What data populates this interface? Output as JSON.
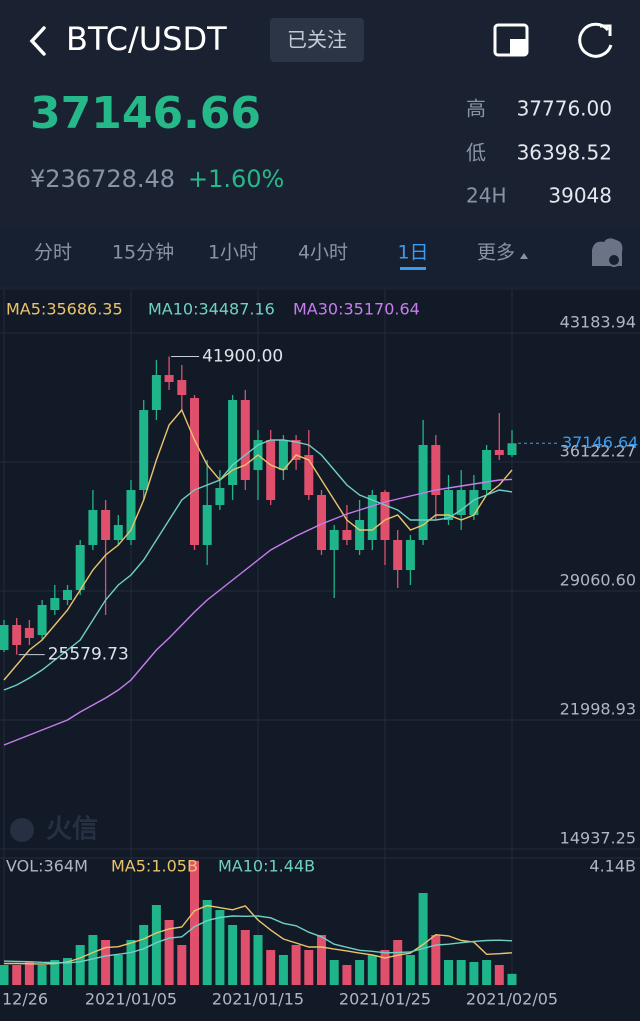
{
  "header": {
    "pair": "BTC/USDT",
    "follow": "已关注"
  },
  "price": {
    "last": "37146.66",
    "cny": "¥236728.48",
    "change": "+1.60%"
  },
  "stats": [
    {
      "label": "高",
      "value": "37776.00"
    },
    {
      "label": "低",
      "value": "36398.52"
    },
    {
      "label": "24H",
      "value": "39048"
    }
  ],
  "tabs": [
    "分时",
    "15分钟",
    "1小时",
    "4小时",
    "1日",
    "更多"
  ],
  "watermark": "火信",
  "chart_data": [
    {
      "type": "candlestick",
      "grid": true,
      "up_color": "#1fb58a",
      "down_color": "#e0506d",
      "categories": [
        "12/26",
        null,
        null,
        null,
        null,
        null,
        null,
        null,
        null,
        null,
        "2021/01/05",
        null,
        null,
        null,
        null,
        null,
        null,
        null,
        null,
        null,
        "2021/01/15",
        null,
        null,
        null,
        null,
        null,
        null,
        null,
        null,
        null,
        "2021/01/25",
        null,
        null,
        null,
        null,
        null,
        null,
        null,
        null,
        null,
        "2021/02/05"
      ],
      "open": [
        25831,
        27199,
        27035,
        26652,
        28020,
        28568,
        29115,
        31579,
        33494,
        31852,
        31852,
        34589,
        38968,
        40884,
        40611,
        39625,
        31579,
        33768,
        34863,
        39516,
        35684,
        37326,
        35684,
        37326,
        36505,
        34316,
        31305,
        32400,
        31305,
        31852,
        34480,
        31852,
        30210,
        31852,
        37053,
        32947,
        33221,
        33221,
        34589,
        36779,
        36505
      ],
      "high": [
        27473,
        27583,
        27473,
        28568,
        29389,
        29389,
        31852,
        34589,
        34042,
        33221,
        35137,
        39516,
        41705,
        41900,
        41432,
        39790,
        36231,
        35684,
        39790,
        40063,
        37874,
        37874,
        37600,
        37600,
        37874,
        34589,
        32673,
        33768,
        34042,
        34589,
        34589,
        32400,
        32126,
        38421,
        37600,
        35410,
        35684,
        35410,
        37053,
        38804,
        37874
      ],
      "low": [
        25720,
        25579.73,
        26105,
        26378,
        27747,
        28294,
        28842,
        31305,
        27747,
        31579,
        31579,
        34042,
        38421,
        40063,
        38968,
        31305,
        30484,
        33494,
        34042,
        34589,
        34042,
        33768,
        35137,
        35684,
        34042,
        31031,
        28677,
        31579,
        31031,
        31305,
        30484,
        29225,
        29389,
        31579,
        32947,
        32673,
        32400,
        32947,
        34316,
        36231,
        36400
      ],
      "close": [
        27199,
        26105,
        26488,
        28294,
        28677,
        29115,
        31579,
        33494,
        31852,
        32673,
        34589,
        38968,
        40884,
        40501,
        39790,
        31579,
        33768,
        34699,
        39516,
        35137,
        37326,
        34042,
        37326,
        36231,
        34316,
        31305,
        32400,
        31852,
        32947,
        34316,
        31852,
        30210,
        31852,
        37053,
        34316,
        34589,
        34589,
        34589,
        36779,
        36505,
        37146.64
      ],
      "series": [
        {
          "name": "MA5:35686.35",
          "color": "#e9c46a",
          "values": [
            24189,
            25010,
            25831,
            26378,
            27199,
            28020,
            29115,
            30210,
            31031,
            31579,
            32400,
            34042,
            36231,
            38147,
            38968,
            37326,
            35958,
            35137,
            35684,
            35958,
            36505,
            35958,
            35684,
            36505,
            36231,
            35137,
            34042,
            32947,
            32400,
            32400,
            32947,
            33221,
            32400,
            32673,
            33221,
            33221,
            32947,
            33221,
            34316,
            34863,
            35686.35
          ]
        },
        {
          "name": "MA10:34487.16",
          "color": "#6fd0c3",
          "values": [
            23641,
            23915,
            24298,
            24736,
            25284,
            25831,
            26378,
            27473,
            28568,
            29389,
            29936,
            30758,
            31852,
            32947,
            34042,
            34589,
            34863,
            35137,
            35958,
            36505,
            37053,
            37326,
            37326,
            37217,
            37053,
            36505,
            35684,
            34863,
            34316,
            34042,
            33768,
            33494,
            32947,
            32947,
            32947,
            33057,
            33494,
            34042,
            34316,
            34589,
            34487.16
          ]
        },
        {
          "name": "MA30:35170.64",
          "color": "#c77dee",
          "values": [
            20630,
            20904,
            21177,
            21451,
            21725,
            21999,
            22437,
            22820,
            23203,
            23641,
            24189,
            25010,
            25831,
            26488,
            27199,
            27911,
            28568,
            29115,
            29663,
            30210,
            30758,
            31305,
            31688,
            32071,
            32400,
            32728,
            33002,
            33276,
            33494,
            33713,
            33932,
            34097,
            34261,
            34425,
            34589,
            34699,
            34808,
            34918,
            35027,
            35137,
            35170.64
          ]
        }
      ],
      "ylim": [
        14773,
        45538
      ],
      "yticks": [
        43183.94,
        36122.27,
        {
          "value": 29060.6,
          "label": "29060.60"
        },
        21998.93,
        14937.25
      ],
      "high_label": {
        "value": 41900,
        "label": "41900.00"
      },
      "low_label": 25579.73,
      "last_price": 37146.64
    },
    {
      "type": "bar",
      "legend_label": "VOL:364M",
      "values": [
        652000000,
        652000000,
        750000000,
        652000000,
        815000000,
        880000000,
        1304000000,
        1630000000,
        1467000000,
        978000000,
        1467000000,
        1956000000,
        2608000000,
        2119000000,
        1304000000,
        4050000000,
        2771000000,
        2445000000,
        1956000000,
        1793000000,
        1630000000,
        1141000000,
        978000000,
        1304000000,
        1141000000,
        1630000000,
        815000000,
        652000000,
        815000000,
        978000000,
        1141000000,
        1467000000,
        978000000,
        2999000000,
        1630000000,
        815000000,
        815000000,
        750000000,
        815000000,
        652000000,
        364000000
      ],
      "series": [
        {
          "name": "MA5:1.05B",
          "color": "#e9c46a",
          "values": [
            700000000,
            700000000,
            690000000,
            680000000,
            700000000,
            750000000,
            880000000,
            1060000000,
            1220000000,
            1250000000,
            1370000000,
            1500000000,
            1700000000,
            1830000000,
            1890000000,
            2420000000,
            2590000000,
            2520000000,
            2450000000,
            2580000000,
            2120000000,
            1790000000,
            1500000000,
            1370000000,
            1240000000,
            1240000000,
            1170000000,
            1110000000,
            1040000000,
            980000000,
            880000000,
            970000000,
            1040000000,
            1320000000,
            1640000000,
            1600000000,
            1450000000,
            1400000000,
            1000000000,
            1020000000,
            1050000000
          ]
        },
        {
          "name": "MA10:1.44B",
          "color": "#6fd0c3",
          "values": [
            780000000,
            770000000,
            760000000,
            740000000,
            730000000,
            720000000,
            760000000,
            850000000,
            950000000,
            1000000000,
            1060000000,
            1180000000,
            1380000000,
            1530000000,
            1570000000,
            1900000000,
            2100000000,
            2200000000,
            2250000000,
            2240000000,
            2250000000,
            2190000000,
            2010000000,
            1930000000,
            1720000000,
            1570000000,
            1330000000,
            1230000000,
            1130000000,
            1100000000,
            1050000000,
            1060000000,
            1080000000,
            1190000000,
            1300000000,
            1330000000,
            1380000000,
            1420000000,
            1450000000,
            1460000000,
            1440000000
          ]
        }
      ],
      "ylim": [
        0,
        4140000000
      ],
      "yticks": [
        {
          "value": 4140000000,
          "label": "4.14B"
        }
      ]
    }
  ]
}
